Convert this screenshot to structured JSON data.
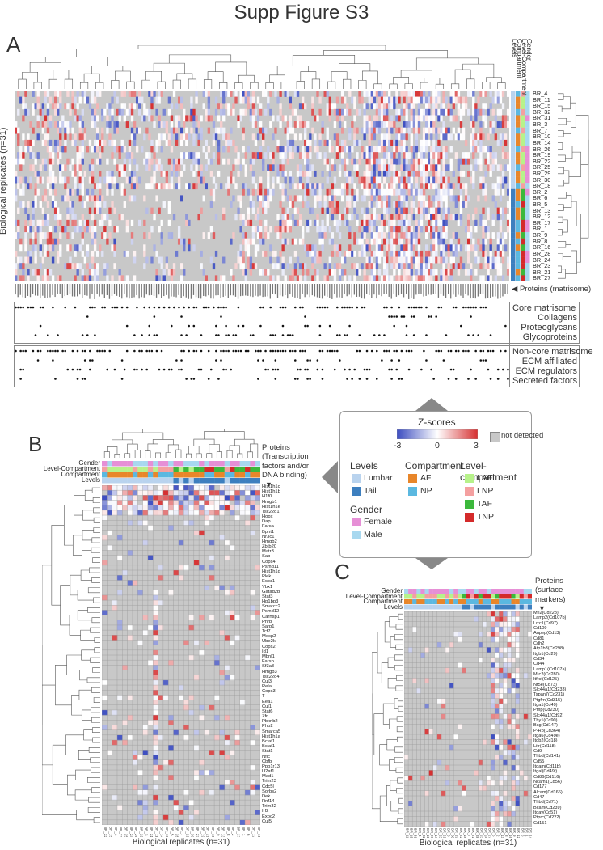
{
  "figure_title": "Supp Figure S3",
  "colors": {
    "not_detected": "#c8c8c8",
    "z_low": "#3b4cc0",
    "z_mid": "#ffffff",
    "z_high": "#d63031",
    "lumbar": "#b9d3ee",
    "tail": "#3d7fbf",
    "af": "#e8862a",
    "np": "#5bb8e0",
    "laf": "#b7f28a",
    "lnp": "#f4a0a0",
    "taf": "#3cb83c",
    "tnp": "#d42a2a",
    "female": "#e68fd6",
    "male": "#a8d8ef"
  },
  "panel_a": {
    "letter": "A",
    "y_label": "Biological replicates (n=31)",
    "x_label": "Proteins (matrisome)",
    "annotation_labels": [
      "Gender",
      "Level-Compartment",
      "Compartment",
      "Levels"
    ],
    "row_labels": [
      "BR_4",
      "BR_11",
      "BR_15",
      "BR_32",
      "BR_31",
      "BR_3",
      "BR_7",
      "BR_10",
      "BR_14",
      "BR_26",
      "BR_19",
      "BR_22",
      "BR_25",
      "BR_29",
      "BR_30",
      "BR_18",
      "BR_2",
      "BR_6",
      "BR_5",
      "BR_13",
      "BR_12",
      "BR_17",
      "BR_1",
      "BR_9",
      "BR_8",
      "BR_16",
      "BR_28",
      "BR_24",
      "BR_23",
      "BR_21",
      "BR_27"
    ],
    "category_groups": [
      {
        "labels": [
          "Core matrisome",
          "Collagens",
          "Proteoglycans",
          "Glycoproteins"
        ]
      },
      {
        "labels": [
          "Non-core matrisome",
          "ECM affiliated",
          "ECM regulators",
          "Secreted factors"
        ]
      }
    ]
  },
  "panel_b": {
    "letter": "B",
    "x_label": "Biological replicates (n=31)",
    "annotation_labels": [
      "Gender",
      "Level-Compartment",
      "Compartment",
      "Levels"
    ],
    "title": "Proteins (Transcription factors and/or DNA binding)",
    "title_lines": [
      "Proteins",
      "(Transcription",
      "factors and/or",
      "DNA binding)"
    ],
    "row_labels": [
      "Hist1h1c",
      "Hist1h1b",
      "H1f0",
      "Hmgb1",
      "Hist1h1e",
      "Tsc22d1",
      "Hopx",
      "Dap",
      "Farsa",
      "Bpnt1",
      "Nr3c1",
      "Hmgb2",
      "Zbtb20",
      "Matr3",
      "Sab",
      "Cops4",
      "Psmd11",
      "Hist1h1d",
      "Plek",
      "Ewsr1",
      "Ybx1",
      "Gatad2b",
      "Stat3",
      "Hp1bp3",
      "Smarcc2",
      "Psmd12",
      "Carhsp1",
      "Pnrb",
      "Sarp1",
      "Tcf7",
      "Mecp2",
      "Ube2k",
      "Cops2",
      "Id1",
      "Mbnl1",
      "Farsb",
      "Sf3a3",
      "Hmgb3",
      "Tsc22d4",
      "Cul3",
      "Rela",
      "Cops3",
      "T",
      "Eea1",
      "Cul1",
      "Stat6",
      "Zfr",
      "Pbxnb2",
      "Phb2",
      "Smarca5",
      "Hist1h1a",
      "Bclaf1",
      "Bclaf1",
      "Stat1",
      "Nfic",
      "Cbfb",
      "Ppp1r13l",
      "U2af1",
      "Mad1",
      "Trim23",
      "Cdc5l",
      "Sorbs2",
      "Dek",
      "Rnf14",
      "Trim32",
      "Irf2",
      "Exoc2",
      "Cul5"
    ],
    "col_labels": [
      "BR_32",
      "BR_15",
      "BR_4",
      "BR_22",
      "BR_25",
      "BR_24",
      "BR_26",
      "BR_23",
      "BR_3",
      "BR_31",
      "BR_11",
      "BR_14",
      "BR_10",
      "BR_5",
      "BR_28",
      "BR_7",
      "BR_29",
      "BR_30",
      "BR_27",
      "BR_19",
      "BR_21",
      "BR_18",
      "BR_9",
      "BR_13",
      "BR_8",
      "BR_2",
      "BR_17",
      "BR_1",
      "BR_6",
      "BR_12",
      "BR_16"
    ]
  },
  "panel_c": {
    "letter": "C",
    "x_label": "Biological replicates (n=31)",
    "annotation_labels": [
      "Gender",
      "Level-Compartment",
      "Compartment",
      "Levels"
    ],
    "title": "Proteins (surface markers)",
    "title_lines": [
      "Proteins",
      "(surface",
      "markers)"
    ],
    "row_labels": [
      "Mfi2(Cd228)",
      "Lamp2(Cd107b)",
      "Lrrc1(Cd97)",
      "Cd109",
      "Anpep(Cd13)",
      "Cd81",
      "Cdh2",
      "Atp1b3(Cd298)",
      "Itgb1(Cd29)",
      "Cd34",
      "Cd44",
      "Lamp1(Cd107a)",
      "Mrc2(Cd280)",
      "Itfrsf(Cd125)",
      "Nt5e(Cd73)",
      "Slc44a1(Cd233)",
      "Tspan7(Cd231)",
      "Ptgfrn(Cd315)",
      "Itga1(Cd49)",
      "Pmp(Cd230)",
      "Slc44a1(Cd92)",
      "Thy1(Cd90)",
      "Bsg(Cd147)",
      "P-Rb(Cd364)",
      "Itga6(Cd49e)",
      "Itgb2(Cd18)",
      "Lifr(Cd118)",
      "Cd9",
      "Thbd(Cd141)",
      "Cd55",
      "Itgam(Cd11b)",
      "Itgal(Cd49f)",
      "Cd86(Cd116)",
      "Ncam1(Cd56)",
      "Cd177",
      "Alcam(Cd166)",
      "Cd47",
      "Thbd(Cd71)",
      "Bcam(Cd239)",
      "Itgav(Cd51)",
      "Ptprc(Cd222)",
      "Cd151"
    ],
    "col_labels": [
      "BR_11",
      "BR_15",
      "BR_31",
      "BR_4",
      "BR_32",
      "BR_10",
      "BR_26",
      "BR_14",
      "BR_25",
      "BR_29",
      "BR_3",
      "BR_30",
      "BR_19",
      "BR_22",
      "BR_18",
      "BR_7",
      "BR_21",
      "BR_28",
      "BR_23",
      "BR_24",
      "BR_27",
      "BR_5",
      "BR_2",
      "BR_13",
      "BR_8",
      "BR_16",
      "BR_9",
      "BR_12",
      "BR_6",
      "BR_1",
      "BR_17"
    ]
  },
  "legend": {
    "zscore_title": "Z-scores",
    "zscore_ticks": [
      "-3",
      "0",
      "3"
    ],
    "not_detected": "not detected",
    "levels_title": "Levels",
    "levels": [
      "Lumbar",
      "Tail"
    ],
    "compartment_title": "Compartment",
    "compartments": [
      "AF",
      "NP"
    ],
    "level_compartment_title": "Level-compartment",
    "level_compartments": [
      "LAF",
      "LNP",
      "TAF",
      "TNP"
    ],
    "gender_title": "Gender",
    "genders": [
      "Female",
      "Male"
    ]
  },
  "chart_data": [
    {
      "type": "heatmap",
      "panel": "A",
      "rows": 31,
      "row_axis_label": "Biological replicates (n=31)",
      "col_axis_label": "Proteins (matrisome)",
      "color_scale": {
        "min": -3,
        "mid": 0,
        "max": 3
      },
      "row_categories": [
        "BR_4",
        "BR_11",
        "BR_15",
        "BR_32",
        "BR_31",
        "BR_3",
        "BR_7",
        "BR_10",
        "BR_14",
        "BR_26",
        "BR_19",
        "BR_22",
        "BR_25",
        "BR_29",
        "BR_30",
        "BR_18",
        "BR_2",
        "BR_6",
        "BR_5",
        "BR_13",
        "BR_12",
        "BR_17",
        "BR_1",
        "BR_9",
        "BR_8",
        "BR_16",
        "BR_28",
        "BR_24",
        "BR_23",
        "BR_21",
        "BR_27"
      ]
    },
    {
      "type": "heatmap",
      "panel": "B",
      "col_axis_label": "Biological replicates (n=31)",
      "color_scale": {
        "min": -3,
        "mid": 0,
        "max": 3
      }
    },
    {
      "type": "heatmap",
      "panel": "C",
      "col_axis_label": "Biological replicates (n=31)",
      "color_scale": {
        "min": -3,
        "mid": 0,
        "max": 3
      }
    }
  ]
}
